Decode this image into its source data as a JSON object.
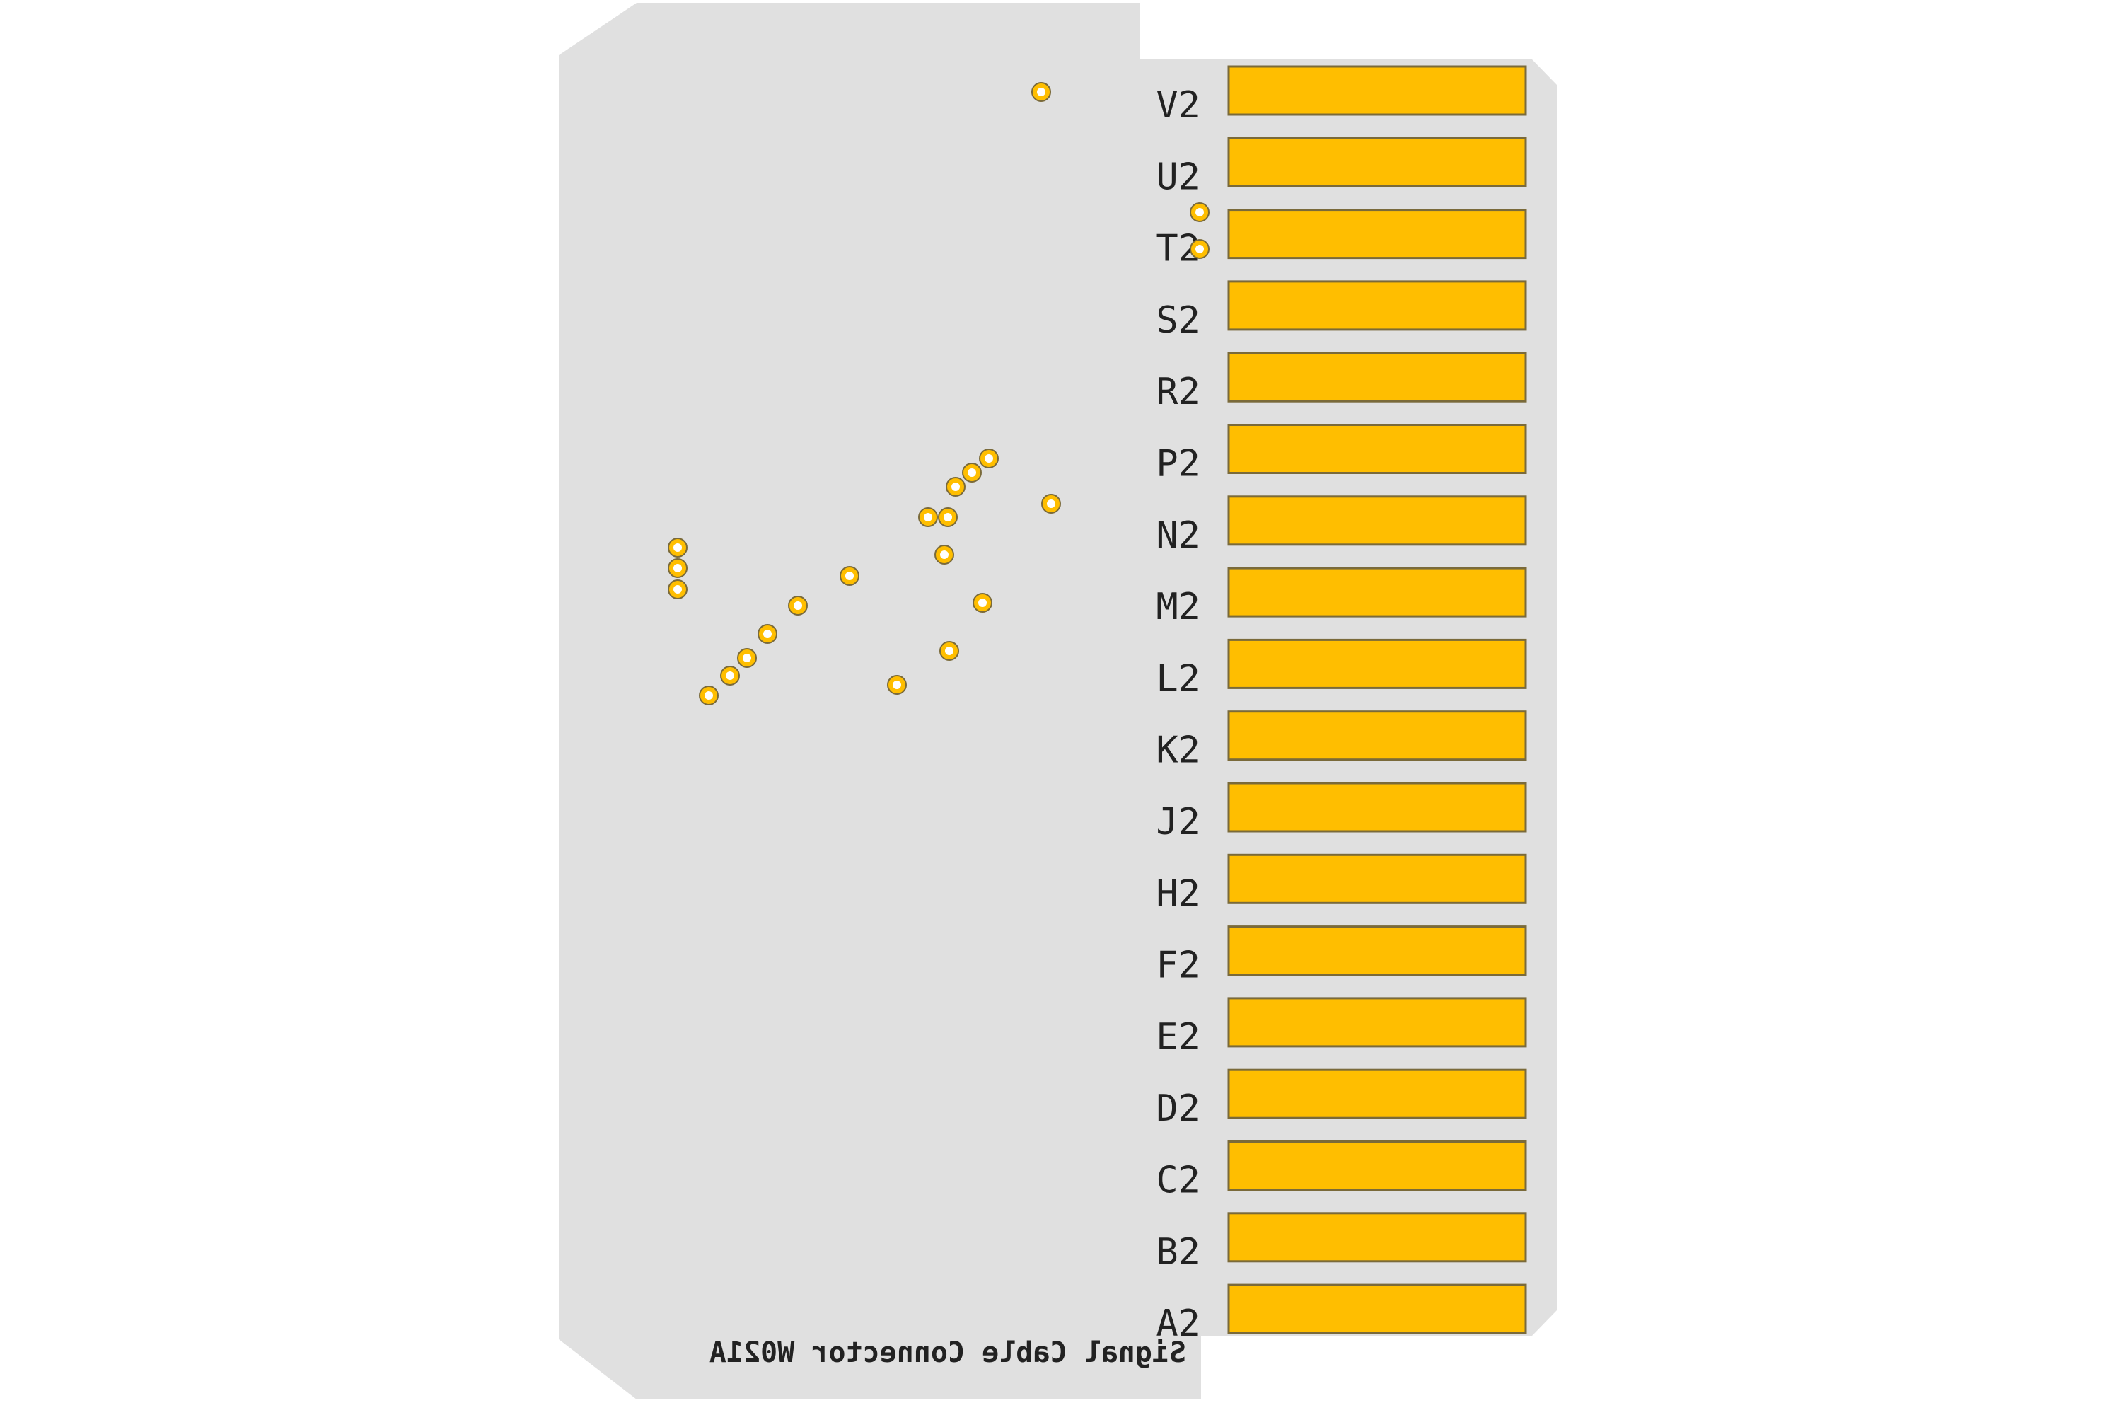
{
  "board": {
    "silkscreen_label": "Signal Cable Connector W021A",
    "colors": {
      "substrate": "#e0e0e0",
      "copper": "#ffbe00",
      "copper_outline": "#7a6a3a",
      "via_hole": "#ffffff",
      "silkscreen": "#222222"
    }
  },
  "contacts": [
    {
      "label": "V2"
    },
    {
      "label": "U2"
    },
    {
      "label": "T2"
    },
    {
      "label": "S2"
    },
    {
      "label": "R2"
    },
    {
      "label": "P2"
    },
    {
      "label": "N2"
    },
    {
      "label": "M2"
    },
    {
      "label": "L2"
    },
    {
      "label": "K2"
    },
    {
      "label": "J2"
    },
    {
      "label": "H2"
    },
    {
      "label": "F2"
    },
    {
      "label": "E2"
    },
    {
      "label": "D2"
    },
    {
      "label": "C2"
    },
    {
      "label": "B2"
    },
    {
      "label": "A2"
    }
  ]
}
